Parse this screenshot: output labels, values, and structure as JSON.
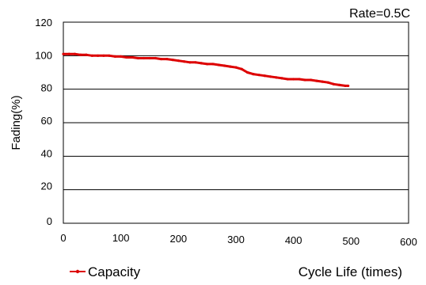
{
  "chart_data": {
    "type": "line",
    "annotation": "Rate=0.5C",
    "xlabel": "Cycle Life (times)",
    "ylabel": "Fading(%)",
    "xlim": [
      0,
      600
    ],
    "ylim": [
      0,
      120
    ],
    "x_ticks": [
      "0",
      "100",
      "200",
      "300",
      "400",
      "500",
      "600"
    ],
    "y_ticks": [
      "0",
      "20",
      "40",
      "60",
      "80",
      "100",
      "120"
    ],
    "grid": "horizontal",
    "legend_position": "bottom-left",
    "series": [
      {
        "name": "Capacity",
        "color": "#dd0000",
        "x": [
          0,
          10,
          20,
          30,
          40,
          50,
          60,
          70,
          80,
          90,
          100,
          110,
          120,
          130,
          140,
          150,
          160,
          170,
          180,
          190,
          200,
          210,
          220,
          230,
          240,
          250,
          260,
          270,
          280,
          290,
          300,
          310,
          320,
          330,
          340,
          350,
          360,
          370,
          380,
          390,
          400,
          410,
          420,
          430,
          440,
          450,
          460,
          470,
          480,
          490,
          495
        ],
        "y": [
          101,
          101,
          101,
          100.5,
          100.5,
          100,
          100,
          100,
          100,
          99.5,
          99.5,
          99,
          99,
          98.5,
          98.5,
          98.5,
          98.5,
          98,
          98,
          97.5,
          97,
          96.5,
          96,
          96,
          95.5,
          95,
          95,
          94.5,
          94,
          93.5,
          93,
          92,
          90,
          89,
          88.5,
          88,
          87.5,
          87,
          86.5,
          86,
          86,
          86,
          85.5,
          85.5,
          85,
          84.5,
          84,
          83,
          82.5,
          82,
          82
        ]
      }
    ]
  }
}
